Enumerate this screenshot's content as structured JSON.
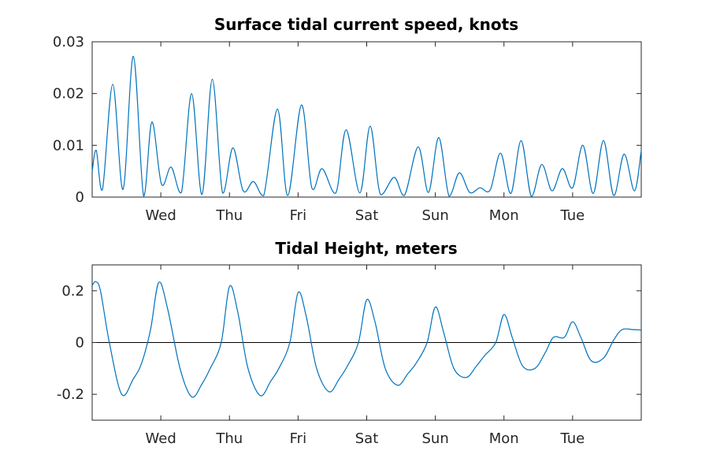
{
  "chart_data": [
    {
      "type": "line",
      "title": "Surface tidal current speed, knots",
      "xlabel": "",
      "ylabel": "",
      "x_tick_labels": [
        "Wed",
        "Thu",
        "Fri",
        "Sat",
        "Sun",
        "Mon",
        "Tue"
      ],
      "x_tick_values": [
        1,
        2,
        3,
        4,
        5,
        6,
        7
      ],
      "xlim": [
        0,
        8
      ],
      "ylim": [
        0,
        0.03
      ],
      "y_ticks": [
        0,
        0.01,
        0.02,
        0.03
      ],
      "y_tick_labels": [
        "0",
        "0.01",
        "0.02",
        "0.03"
      ],
      "grid": false,
      "line_color": "#0072BD",
      "series": [
        {
          "x": [
            0,
            0.06,
            0.15,
            0.3,
            0.45,
            0.6,
            0.75,
            0.87,
            1.01,
            1.15,
            1.3,
            1.45,
            1.6,
            1.75,
            1.9,
            2.05,
            2.2,
            2.35,
            2.5,
            2.7,
            2.85,
            3.05,
            3.2,
            3.35,
            3.55,
            3.7,
            3.9,
            4.05,
            4.2,
            4.4,
            4.55,
            4.75,
            4.9,
            5.05,
            5.2,
            5.35,
            5.5,
            5.65,
            5.8,
            5.95,
            6.1,
            6.25,
            6.4,
            6.55,
            6.7,
            6.85,
            7.0,
            7.15,
            7.3,
            7.45,
            7.6,
            7.75,
            7.9,
            8.0
          ],
          "y": [
            0.005,
            0.009,
            0.0015,
            0.0218,
            0.0015,
            0.0272,
            0.0002,
            0.0145,
            0.0025,
            0.0058,
            0.0009,
            0.02,
            0.0005,
            0.0228,
            0.0008,
            0.0095,
            0.0012,
            0.003,
            0.0003,
            0.017,
            0.0003,
            0.0178,
            0.0018,
            0.0055,
            0.0008,
            0.013,
            0.0008,
            0.0137,
            0.0005,
            0.0038,
            0.0003,
            0.0097,
            0.0009,
            0.0115,
            0.0002,
            0.0047,
            0.0009,
            0.0018,
            0.0014,
            0.0085,
            0.0007,
            0.0109,
            0.0001,
            0.0063,
            0.0012,
            0.0055,
            0.0018,
            0.01,
            0.0007,
            0.0109,
            0.0003,
            0.0083,
            0.0012,
            0.009
          ]
        }
      ]
    },
    {
      "type": "line",
      "title": "Tidal Height, meters",
      "xlabel": "",
      "ylabel": "",
      "x_tick_labels": [
        "Wed",
        "Thu",
        "Fri",
        "Sat",
        "Sun",
        "Mon",
        "Tue"
      ],
      "x_tick_values": [
        1,
        2,
        3,
        4,
        5,
        6,
        7
      ],
      "xlim": [
        0,
        8
      ],
      "ylim": [
        -0.3,
        0.3
      ],
      "y_ticks": [
        -0.2,
        0,
        0.2
      ],
      "y_tick_labels": [
        "-0.2",
        "0",
        "0.2"
      ],
      "grid": false,
      "zero_line": true,
      "line_color": "#0072BD",
      "series": [
        {
          "x": [
            0,
            0.05,
            0.12,
            0.25,
            0.43,
            0.6,
            0.72,
            0.85,
            0.97,
            1.1,
            1.28,
            1.45,
            1.6,
            1.72,
            1.88,
            2.0,
            2.12,
            2.27,
            2.45,
            2.6,
            2.72,
            2.88,
            3.0,
            3.12,
            3.27,
            3.45,
            3.6,
            3.72,
            3.88,
            4.0,
            4.12,
            4.27,
            4.45,
            4.6,
            4.72,
            4.88,
            5.0,
            5.12,
            5.27,
            5.45,
            5.6,
            5.72,
            5.88,
            6.0,
            6.12,
            6.27,
            6.45,
            6.6,
            6.72,
            6.88,
            7.0,
            7.12,
            7.27,
            7.45,
            7.6,
            7.72,
            7.88,
            8.0
          ],
          "y": [
            0.22,
            0.235,
            0.2,
            0.0,
            -0.2,
            -0.14,
            -0.08,
            0.05,
            0.232,
            0.13,
            -0.1,
            -0.21,
            -0.16,
            -0.1,
            0.0,
            0.217,
            0.12,
            -0.1,
            -0.205,
            -0.15,
            -0.1,
            0.0,
            0.193,
            0.1,
            -0.1,
            -0.19,
            -0.14,
            -0.09,
            0.0,
            0.165,
            0.08,
            -0.1,
            -0.165,
            -0.12,
            -0.08,
            0.0,
            0.137,
            0.04,
            -0.1,
            -0.135,
            -0.09,
            -0.05,
            0.0,
            0.108,
            0.02,
            -0.09,
            -0.1,
            -0.04,
            0.02,
            0.02,
            0.08,
            0.02,
            -0.07,
            -0.06,
            0.01,
            0.05,
            0.05,
            0.048
          ]
        }
      ]
    }
  ]
}
